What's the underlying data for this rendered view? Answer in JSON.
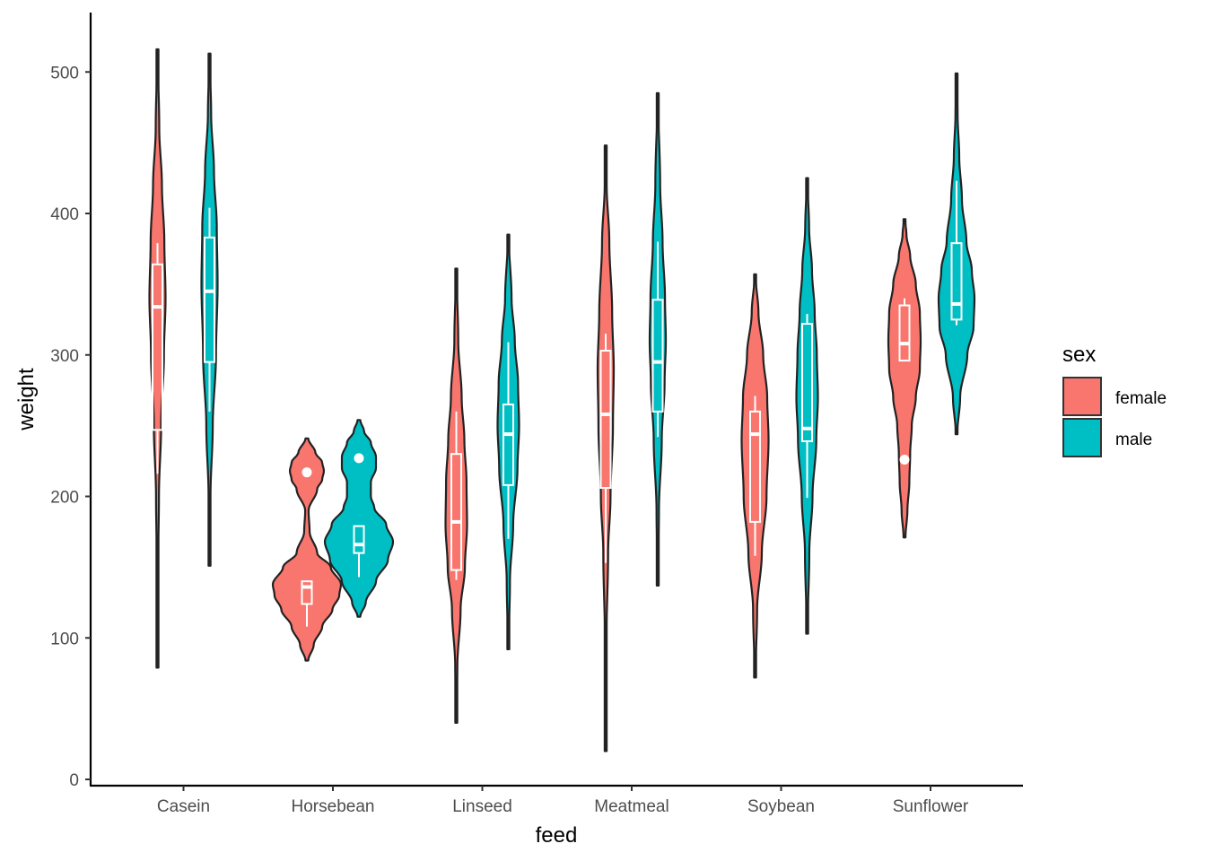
{
  "chart_data": {
    "type": "violin",
    "xlabel": "feed",
    "ylabel": "weight",
    "ylim": [
      -8,
      542
    ],
    "y_ticks": [
      0,
      100,
      200,
      300,
      400,
      500
    ],
    "categories": [
      "Casein",
      "Horsebean",
      "Linseed",
      "Meatmeal",
      "Soybean",
      "Sunflower"
    ],
    "grid": false,
    "legend": {
      "title": "sex",
      "position": "right",
      "entries": [
        {
          "label": "female",
          "color": "#F8766D"
        },
        {
          "label": "male",
          "color": "#00BFC4"
        }
      ]
    },
    "series": [
      {
        "name": "female",
        "color": "#F8766D",
        "groups": [
          {
            "category": "Casein",
            "min": 79,
            "max": 516,
            "max_half_width": 9,
            "profile": [
              [
                79,
                0.03
              ],
              [
                150,
                0.08
              ],
              [
                200,
                0.18
              ],
              [
                250,
                0.45
              ],
              [
                300,
                0.8
              ],
              [
                340,
                1
              ],
              [
                380,
                0.85
              ],
              [
                420,
                0.55
              ],
              [
                460,
                0.22
              ],
              [
                516,
                0.03
              ]
            ],
            "box": {
              "lower_whisker": 216,
              "q1": 247,
              "median": 334,
              "q3": 364,
              "upper_whisker": 379
            },
            "outliers": []
          },
          {
            "category": "Horsebean",
            "min": 84,
            "max": 241,
            "max_half_width": 38,
            "profile": [
              [
                84,
                0.04
              ],
              [
                95,
                0.2
              ],
              [
                108,
                0.45
              ],
              [
                120,
                0.75
              ],
              [
                130,
                0.95
              ],
              [
                138,
                1
              ],
              [
                150,
                0.7
              ],
              [
                160,
                0.3
              ],
              [
                175,
                0.08
              ],
              [
                190,
                0.05
              ],
              [
                205,
                0.3
              ],
              [
                212,
                0.45
              ],
              [
                218,
                0.5
              ],
              [
                224,
                0.45
              ],
              [
                231,
                0.25
              ],
              [
                241,
                0.04
              ]
            ],
            "box": {
              "lower_whisker": 108,
              "q1": 124,
              "median": 136,
              "q3": 140,
              "upper_whisker": 140
            },
            "outliers": [
              217
            ]
          },
          {
            "category": "Linseed",
            "min": 40,
            "max": 361,
            "max_half_width": 12,
            "profile": [
              [
                40,
                0.03
              ],
              [
                80,
                0.1
              ],
              [
                120,
                0.4
              ],
              [
                150,
                0.8
              ],
              [
                180,
                1
              ],
              [
                210,
                0.95
              ],
              [
                240,
                0.75
              ],
              [
                270,
                0.5
              ],
              [
                310,
                0.18
              ],
              [
                361,
                0.03
              ]
            ],
            "box": {
              "lower_whisker": 141,
              "q1": 148,
              "median": 182,
              "q3": 230,
              "upper_whisker": 260
            },
            "outliers": []
          },
          {
            "category": "Meatmeal",
            "min": 20,
            "max": 448,
            "max_half_width": 9,
            "profile": [
              [
                20,
                0.02
              ],
              [
                100,
                0.1
              ],
              [
                160,
                0.3
              ],
              [
                200,
                0.6
              ],
              [
                250,
                0.9
              ],
              [
                290,
                1
              ],
              [
                330,
                0.8
              ],
              [
                380,
                0.45
              ],
              [
                420,
                0.12
              ],
              [
                448,
                0.02
              ]
            ],
            "box": {
              "lower_whisker": 153,
              "q1": 206,
              "median": 258,
              "q3": 303,
              "upper_whisker": 315
            },
            "outliers": []
          },
          {
            "category": "Soybean",
            "min": 72,
            "max": 357,
            "max_half_width": 15,
            "profile": [
              [
                72,
                0.03
              ],
              [
                120,
                0.15
              ],
              [
                160,
                0.5
              ],
              [
                200,
                0.85
              ],
              [
                240,
                1
              ],
              [
                270,
                0.9
              ],
              [
                300,
                0.6
              ],
              [
                330,
                0.25
              ],
              [
                357,
                0.03
              ]
            ],
            "box": {
              "lower_whisker": 158,
              "q1": 182,
              "median": 244,
              "q3": 260,
              "upper_whisker": 271
            },
            "outliers": []
          },
          {
            "category": "Sunflower",
            "min": 171,
            "max": 396,
            "max_half_width": 18,
            "profile": [
              [
                171,
                0.06
              ],
              [
                190,
                0.18
              ],
              [
                210,
                0.3
              ],
              [
                230,
                0.35
              ],
              [
                250,
                0.45
              ],
              [
                270,
                0.7
              ],
              [
                290,
                0.95
              ],
              [
                310,
                1
              ],
              [
                330,
                0.95
              ],
              [
                350,
                0.7
              ],
              [
                370,
                0.35
              ],
              [
                385,
                0.12
              ],
              [
                396,
                0.04
              ]
            ],
            "box": {
              "lower_whisker": 296,
              "q1": 296,
              "median": 308,
              "q3": 335,
              "upper_whisker": 340
            },
            "outliers": [
              226
            ]
          }
        ]
      },
      {
        "name": "male",
        "color": "#00BFC4",
        "groups": [
          {
            "category": "Casein",
            "min": 151,
            "max": 513,
            "max_half_width": 9,
            "profile": [
              [
                151,
                0.03
              ],
              [
                200,
                0.12
              ],
              [
                250,
                0.4
              ],
              [
                300,
                0.8
              ],
              [
                350,
                1
              ],
              [
                390,
                0.9
              ],
              [
                430,
                0.55
              ],
              [
                470,
                0.2
              ],
              [
                513,
                0.03
              ]
            ],
            "box": {
              "lower_whisker": 260,
              "q1": 295,
              "median": 345,
              "q3": 383,
              "upper_whisker": 404
            },
            "outliers": []
          },
          {
            "category": "Horsebean",
            "min": 115,
            "max": 254,
            "max_half_width": 38,
            "profile": [
              [
                115,
                0.04
              ],
              [
                125,
                0.2
              ],
              [
                140,
                0.5
              ],
              [
                155,
                0.85
              ],
              [
                168,
                1
              ],
              [
                180,
                0.8
              ],
              [
                192,
                0.45
              ],
              [
                200,
                0.35
              ],
              [
                210,
                0.35
              ],
              [
                220,
                0.5
              ],
              [
                228,
                0.5
              ],
              [
                238,
                0.35
              ],
              [
                246,
                0.15
              ],
              [
                254,
                0.04
              ]
            ],
            "box": {
              "lower_whisker": 143,
              "q1": 160,
              "median": 166,
              "q3": 179,
              "upper_whisker": 179
            },
            "outliers": [
              227
            ]
          },
          {
            "category": "Linseed",
            "min": 92,
            "max": 385,
            "max_half_width": 12,
            "profile": [
              [
                92,
                0.03
              ],
              [
                140,
                0.15
              ],
              [
                180,
                0.45
              ],
              [
                220,
                0.85
              ],
              [
                250,
                1
              ],
              [
                280,
                0.9
              ],
              [
                310,
                0.6
              ],
              [
                340,
                0.3
              ],
              [
                385,
                0.03
              ]
            ],
            "box": {
              "lower_whisker": 170,
              "q1": 208,
              "median": 244,
              "q3": 265,
              "upper_whisker": 309
            },
            "outliers": []
          },
          {
            "category": "Meatmeal",
            "min": 137,
            "max": 485,
            "max_half_width": 9,
            "profile": [
              [
                137,
                0.03
              ],
              [
                190,
                0.15
              ],
              [
                240,
                0.5
              ],
              [
                280,
                0.85
              ],
              [
                310,
                1
              ],
              [
                340,
                0.9
              ],
              [
                380,
                0.6
              ],
              [
                420,
                0.3
              ],
              [
                485,
                0.03
              ]
            ],
            "box": {
              "lower_whisker": 242,
              "q1": 260,
              "median": 295,
              "q3": 339,
              "upper_whisker": 380
            },
            "outliers": []
          },
          {
            "category": "Soybean",
            "min": 103,
            "max": 425,
            "max_half_width": 12,
            "profile": [
              [
                103,
                0.03
              ],
              [
                160,
                0.2
              ],
              [
                200,
                0.5
              ],
              [
                240,
                0.85
              ],
              [
                270,
                1
              ],
              [
                300,
                0.9
              ],
              [
                330,
                0.7
              ],
              [
                360,
                0.45
              ],
              [
                390,
                0.18
              ],
              [
                425,
                0.03
              ]
            ],
            "box": {
              "lower_whisker": 199,
              "q1": 239,
              "median": 248,
              "q3": 322,
              "upper_whisker": 329
            },
            "outliers": []
          },
          {
            "category": "Sunflower",
            "min": 244,
            "max": 499,
            "max_half_width": 20,
            "profile": [
              [
                244,
                0.04
              ],
              [
                270,
                0.2
              ],
              [
                300,
                0.6
              ],
              [
                320,
                0.95
              ],
              [
                340,
                1
              ],
              [
                360,
                0.85
              ],
              [
                380,
                0.55
              ],
              [
                410,
                0.3
              ],
              [
                440,
                0.15
              ],
              [
                470,
                0.06
              ],
              [
                499,
                0.02
              ]
            ],
            "box": {
              "lower_whisker": 321,
              "q1": 325,
              "median": 336,
              "q3": 379,
              "upper_whisker": 423
            },
            "outliers": []
          }
        ]
      }
    ]
  }
}
